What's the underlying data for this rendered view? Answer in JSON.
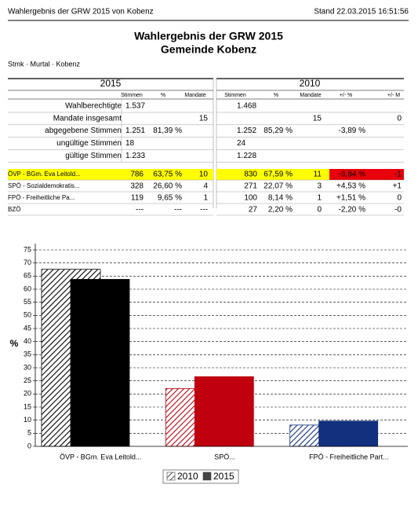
{
  "header": {
    "left": "Wahlergebnis der GRW 2015 von Kobenz",
    "right": "Stand 22.03.2015 16:51:56"
  },
  "title": "Wahlergebnis der GRW 2015",
  "subtitle": "Gemeinde Kobenz",
  "breadcrumb": "Stmk · Murtal · Kobenz",
  "table": {
    "left_header": "2015",
    "right_header": "2010",
    "left_columns": [
      "Stimmen",
      "%",
      "Mandate"
    ],
    "right_columns": [
      "Stimmen",
      "%",
      "Mandate",
      "+/- %",
      "+/- M"
    ],
    "summary_rows": [
      {
        "label": "Wahlberechtigte",
        "y2015": [
          "1.537",
          null,
          null
        ],
        "y2010": [
          "1.468",
          null,
          null,
          null,
          null
        ]
      },
      {
        "label": "Mandate insgesamt",
        "y2015": [
          null,
          null,
          "15"
        ],
        "y2010": [
          null,
          null,
          "15",
          null,
          "0"
        ]
      },
      {
        "label": "abgegebene Stimmen",
        "y2015": [
          "1.251",
          "81,39 %",
          null
        ],
        "y2010": [
          "1.252",
          "85,29 %",
          null,
          "-3,89 %",
          null
        ]
      },
      {
        "label": "ungültige Stimmen",
        "y2015": [
          "18",
          null,
          null
        ],
        "y2010": [
          "24",
          null,
          null,
          null,
          null
        ]
      },
      {
        "label": "gültige Stimmen",
        "y2015": [
          "1.233",
          null,
          null
        ],
        "y2010": [
          "1.228",
          null,
          null,
          null,
          null
        ]
      }
    ],
    "party_rows": [
      {
        "label": "ÖVP - BGm. Eva Leitold...",
        "y2015": [
          "786",
          "63,75 %",
          "10"
        ],
        "y2010": [
          "830",
          "67,59 %",
          "11",
          "-3,84 %",
          "-1"
        ]
      },
      {
        "label": "SPÖ - Sozialdemokratis...",
        "y2015": [
          "328",
          "26,60 %",
          "4"
        ],
        "y2010": [
          "271",
          "22,07 %",
          "3",
          "+4,53 %",
          "+1"
        ]
      },
      {
        "label": "FPÖ - Freiheitliche Pa...",
        "y2015": [
          "119",
          "9,65 %",
          "1"
        ],
        "y2010": [
          "100",
          "8,14 %",
          "1",
          "+1,51 %",
          "0"
        ]
      },
      {
        "label": "BZÖ",
        "y2015": [
          "---",
          "---",
          "---"
        ],
        "y2010": [
          "27",
          "2,20 %",
          "0",
          "-2,20 %",
          "-0"
        ]
      }
    ]
  },
  "chart_data": {
    "type": "bar",
    "y_label": "%",
    "categories": [
      "ÖVP - BGm. Eva Leitold...",
      "SPÖ...",
      "FPÖ - Freiheitliche Part..."
    ],
    "colors": [
      "#000000",
      "#c0000f",
      "#12307e"
    ],
    "series": [
      {
        "name": "2010",
        "pattern": "hatch",
        "values": [
          67.59,
          22.07,
          8.14
        ]
      },
      {
        "name": "2015",
        "pattern": "solid",
        "values": [
          63.75,
          26.6,
          9.65
        ]
      }
    ],
    "ylim": [
      0,
      75
    ],
    "yticks": [
      0,
      5,
      10,
      15,
      20,
      25,
      30,
      35,
      40,
      45,
      50,
      55,
      60,
      65,
      70,
      75
    ],
    "grid": true
  }
}
